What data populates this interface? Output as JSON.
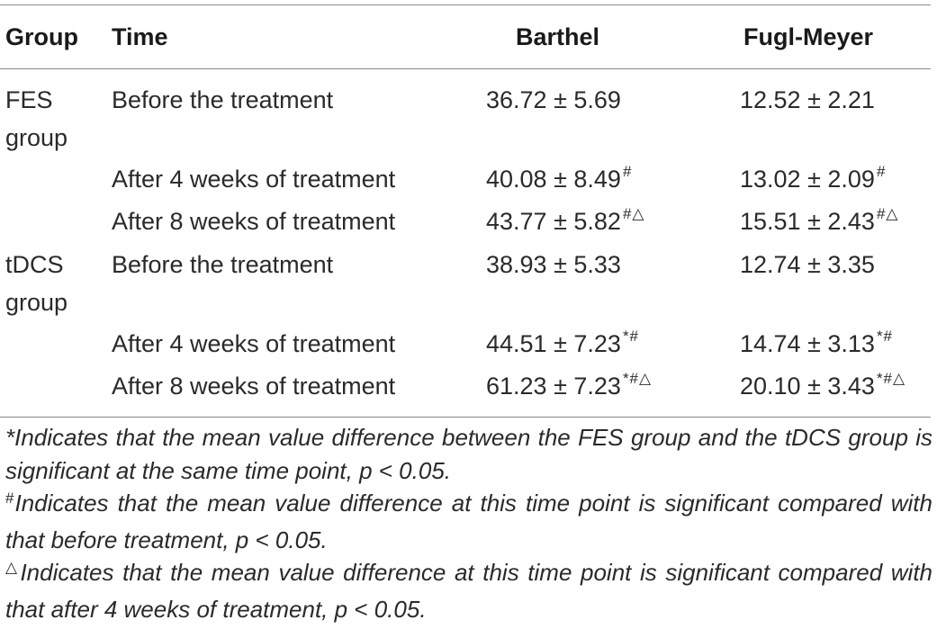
{
  "table": {
    "headers": {
      "group": "Group",
      "time": "Time",
      "barthel": "Barthel",
      "fugl_meyer": "Fugl-Meyer"
    },
    "groups": [
      {
        "name": "FES group",
        "rows": [
          {
            "time": "Before the treatment",
            "barthel": "36.72 ± 5.69",
            "barthel_marks": "",
            "fm": "12.52 ± 2.21",
            "fm_marks": ""
          },
          {
            "time": "After 4 weeks of treatment",
            "barthel": "40.08 ± 8.49",
            "barthel_marks": "#",
            "fm": "13.02 ± 2.09",
            "fm_marks": "#"
          },
          {
            "time": "After 8 weeks of treatment",
            "barthel": "43.77 ± 5.82",
            "barthel_marks": "#△",
            "fm": "15.51 ± 2.43",
            "fm_marks": "#△"
          }
        ]
      },
      {
        "name": "tDCS group",
        "rows": [
          {
            "time": "Before the treatment",
            "barthel": "38.93 ± 5.33",
            "barthel_marks": "",
            "fm": "12.74 ± 3.35",
            "fm_marks": ""
          },
          {
            "time": "After 4 weeks of treatment",
            "barthel": "44.51 ± 7.23",
            "barthel_marks": "*#",
            "fm": "14.74 ± 3.13",
            "fm_marks": "*#"
          },
          {
            "time": "After 8 weeks of treatment",
            "barthel": "61.23 ± 7.23",
            "barthel_marks": "*#△",
            "fm": "20.10 ± 3.43",
            "fm_marks": "*#△"
          }
        ]
      }
    ]
  },
  "footnotes": [
    {
      "symbol": "",
      "text": "*Indicates that the mean value difference between the FES group and the tDCS group is significant at the same time point, p < 0.05."
    },
    {
      "symbol": "#",
      "text": "Indicates that the mean value difference at this time point is significant compared with that before treatment, p < 0.05."
    },
    {
      "symbol": "△",
      "text": "Indicates that the mean value difference at this time point is significant compared with that after 4 weeks of treatment, p < 0.05."
    }
  ]
}
